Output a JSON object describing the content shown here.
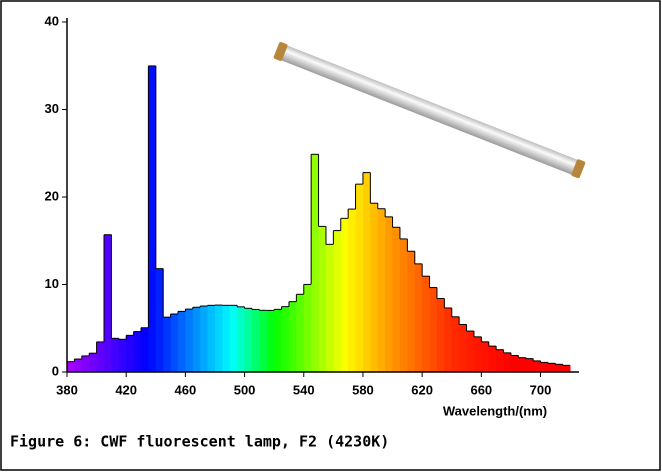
{
  "chart_data": {
    "type": "histogram",
    "xlabel": "Wavelength/(nm)",
    "caption": "Figure 6: CWF fluorescent lamp, F2 (4230K)",
    "bins": [
      380,
      385,
      390,
      395,
      400,
      405,
      410,
      415,
      420,
      425,
      430,
      435,
      440,
      445,
      450,
      455,
      460,
      465,
      470,
      475,
      480,
      485,
      490,
      495,
      500,
      505,
      510,
      515,
      520,
      525,
      530,
      535,
      540,
      545,
      550,
      555,
      560,
      565,
      570,
      575,
      580,
      585,
      590,
      595,
      600,
      605,
      610,
      615,
      620,
      625,
      630,
      635,
      640,
      645,
      650,
      655,
      660,
      665,
      670,
      675,
      680,
      685,
      690,
      695,
      700,
      705,
      710,
      715,
      720
    ],
    "values": [
      1.18,
      1.48,
      1.84,
      2.15,
      3.44,
      15.69,
      3.85,
      3.74,
      4.19,
      4.62,
      5.06,
      34.98,
      11.81,
      6.27,
      6.63,
      6.93,
      7.19,
      7.4,
      7.54,
      7.62,
      7.65,
      7.62,
      7.62,
      7.45,
      7.28,
      7.15,
      7.05,
      7.04,
      7.16,
      7.47,
      8.04,
      8.88,
      10.01,
      24.88,
      16.64,
      14.59,
      16.16,
      17.56,
      18.62,
      21.47,
      22.79,
      19.29,
      18.66,
      17.73,
      16.54,
      15.21,
      13.8,
      12.36,
      10.95,
      9.65,
      8.4,
      7.32,
      6.31,
      5.43,
      4.68,
      4.02,
      3.45,
      2.96,
      2.55,
      2.19,
      1.89,
      1.64,
      1.53,
      1.27,
      1.1,
      0.99,
      0.88,
      0.76
    ],
    "xlim": [
      380,
      726
    ],
    "ylim": [
      0,
      40
    ],
    "xticks": [
      380,
      420,
      460,
      500,
      540,
      580,
      620,
      660,
      700
    ],
    "yticks": [
      0,
      10,
      20,
      30,
      40
    ]
  }
}
